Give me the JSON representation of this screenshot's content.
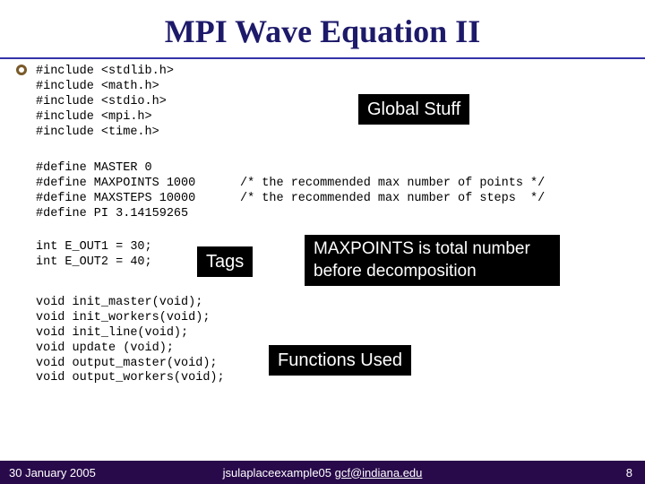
{
  "title": "MPI Wave Equation II",
  "colors": {
    "title_text": "#1d1a6a",
    "title_rule": "#3333aa",
    "bullet_border": "#7a5a2a",
    "label_bg": "#000000",
    "label_text": "#ffffff",
    "footer_bg": "#280a4a",
    "footer_text": "#ffffff"
  },
  "code": {
    "includes": "#include <stdlib.h>\n#include <math.h>\n#include <stdio.h>\n#include <mpi.h>\n#include <time.h>",
    "defines_left": "#define MASTER 0\n#define MAXPOINTS 1000\n#define MAXSTEPS 10000\n#define PI 3.14159265",
    "defines_right": "/* the recommended max number of points */\n/* the recommended max number of steps  */",
    "ints": "int E_OUT1 = 30;\nint E_OUT2 = 40;",
    "funcs": "void init_master(void);\nvoid init_workers(void);\nvoid init_line(void);\nvoid update (void);\nvoid output_master(void);\nvoid output_workers(void);"
  },
  "labels": {
    "global": "Global Stuff",
    "tags": "Tags",
    "maxpoints": "MAXPOINTS is total number before decomposition",
    "functions": "Functions Used"
  },
  "footer": {
    "date": "30 January 2005",
    "source_prefix": "jsulaplaceexample05 ",
    "email": "gcf@indiana.edu",
    "page": "8"
  }
}
